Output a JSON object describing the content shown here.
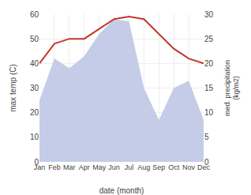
{
  "chart_data": {
    "type": "area",
    "x_label": "date (month)",
    "y_label": "max temp (C)",
    "y2_label": "med. precipitation\n(kg/m2)",
    "categories": [
      "Jan",
      "Feb",
      "Mar",
      "Apr",
      "May",
      "Jun",
      "Jul",
      "Aug",
      "Sep",
      "Oct",
      "Nov",
      "Dec"
    ],
    "series": [
      {
        "type": "area",
        "color": "#c5cce8",
        "values": [
          25,
          42,
          38,
          43,
          52,
          58,
          57,
          30,
          17,
          30,
          33,
          17
        ]
      },
      {
        "type": "line",
        "color": "#c0392b",
        "axis": "y2",
        "values": [
          20,
          24,
          25,
          25,
          27,
          29,
          29.5,
          29,
          26,
          23,
          21,
          20
        ]
      }
    ],
    "ylim": [
      0,
      60
    ],
    "yticks": [
      0,
      10,
      20,
      30,
      40,
      50,
      60
    ],
    "y2lim": [
      0,
      30
    ],
    "y2ticks": [
      0,
      5,
      10,
      15,
      20,
      25,
      30
    ],
    "grid": true
  }
}
